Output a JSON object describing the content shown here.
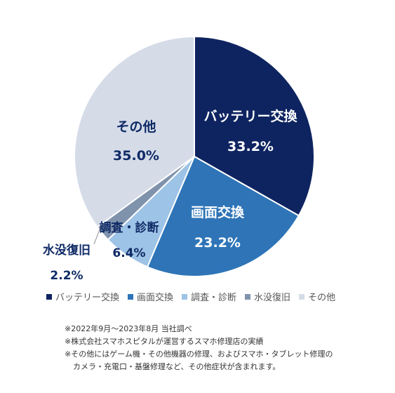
{
  "colors": {
    "label_dark": "#0f2a66",
    "label_light": "#ffffff"
  },
  "chart_data": {
    "type": "pie",
    "title": "",
    "slices": [
      {
        "name": "バッテリー交換",
        "value": 33.2,
        "label": "33.2%",
        "color": "#0e2461"
      },
      {
        "name": "画面交換",
        "value": 23.2,
        "label": "23.2%",
        "color": "#2e74b7"
      },
      {
        "name": "調査・診断",
        "value": 6.4,
        "label": "6.4%",
        "color": "#9dc3e6"
      },
      {
        "name": "水没復旧",
        "value": 2.2,
        "label": "2.2%",
        "color": "#8093ad"
      },
      {
        "name": "その他",
        "value": 35.0,
        "label": "35.0%",
        "color": "#d5dce8"
      }
    ],
    "legend": [
      "バッテリー交換",
      "画面交換",
      "調査・診断",
      "水没復旧",
      "その他"
    ],
    "legend_position": "bottom"
  },
  "footnotes": [
    "※2022年9月～2023年8月 当社調べ",
    "※株式会社スマホスピタルが運営するスマホ修理店の実績",
    "※その他にはゲーム機・その他機器の修理、およびスマホ・タブレット修理の",
    "カメラ・充電口・基盤修理など、その他症状が含まれます。"
  ]
}
